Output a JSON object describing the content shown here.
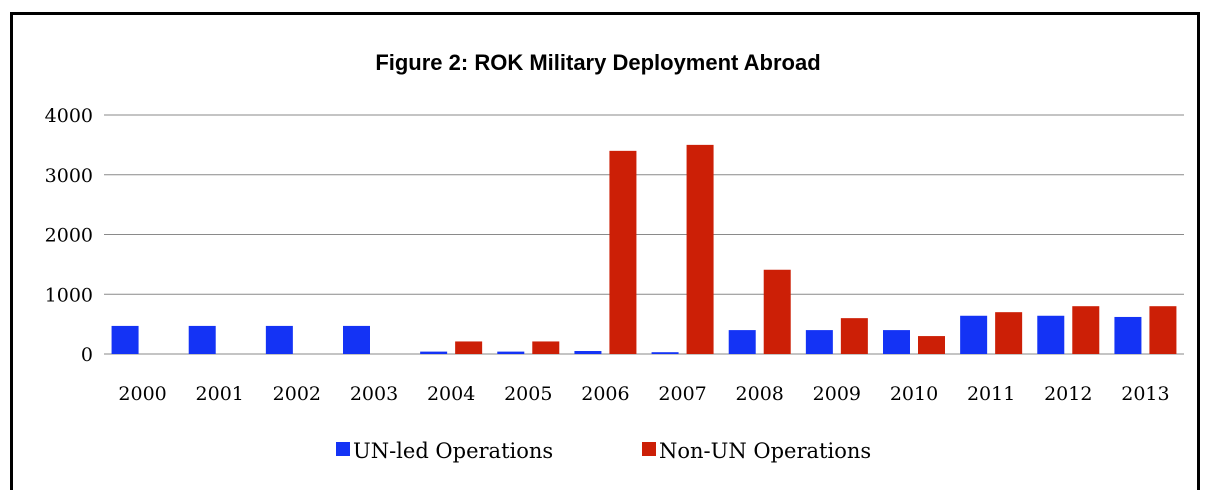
{
  "chart_data": {
    "type": "bar",
    "title": "Figure 2: ROK Military Deployment Abroad",
    "xlabel": "",
    "ylabel": "",
    "ylim": [
      0,
      4000
    ],
    "yticks": [
      "0",
      "1000",
      "2000",
      "3000",
      "4000"
    ],
    "grid": true,
    "legend_position": "bottom",
    "categories": [
      "2000",
      "2001",
      "2002",
      "2003",
      "2004",
      "2005",
      "2006",
      "2007",
      "2008",
      "2009",
      "2010",
      "2011",
      "2012",
      "2013"
    ],
    "series": [
      {
        "name": "UN-led Operations",
        "color": "#1433f5",
        "values": [
          470,
          470,
          470,
          470,
          40,
          40,
          50,
          30,
          400,
          400,
          400,
          640,
          640,
          620
        ]
      },
      {
        "name": "Non-UN Operations",
        "color": "#cc1f06",
        "values": [
          0,
          0,
          0,
          0,
          210,
          210,
          3400,
          3500,
          1410,
          600,
          300,
          700,
          800,
          800
        ]
      }
    ]
  }
}
